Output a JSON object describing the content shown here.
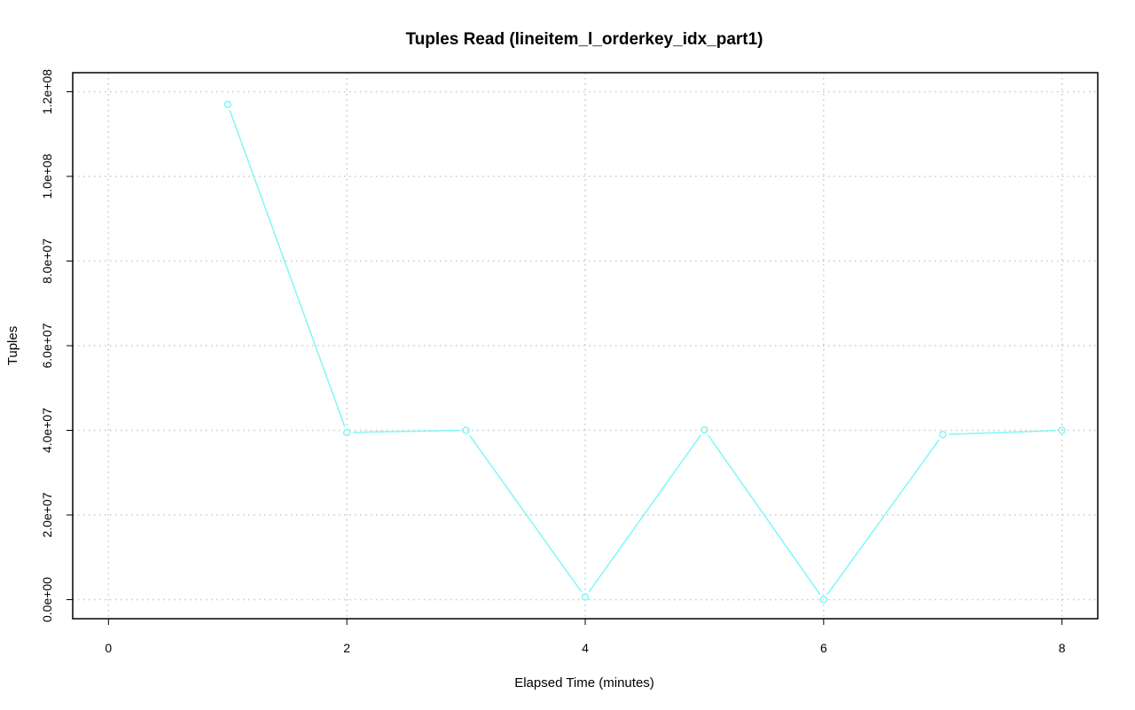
{
  "chart_data": {
    "type": "line",
    "title": "Tuples Read (lineitem_l_orderkey_idx_part1)",
    "xlabel": "Elapsed Time (minutes)",
    "ylabel": "Tuples",
    "xlim": [
      -0.3,
      8.3
    ],
    "ylim": [
      -4500000,
      124500000
    ],
    "x_ticks": [
      0,
      2,
      4,
      6,
      8
    ],
    "x_tick_labels": [
      "0",
      "2",
      "4",
      "6",
      "8"
    ],
    "y_ticks": [
      0,
      20000000,
      40000000,
      60000000,
      80000000,
      100000000,
      120000000
    ],
    "y_tick_labels": [
      "0.0e+00",
      "2.0e+07",
      "4.0e+07",
      "6.0e+07",
      "8.0e+07",
      "1.0e+08",
      "1.2e+08"
    ],
    "grid": true,
    "series": [
      {
        "color": "#7ff7f7",
        "x": [
          1,
          2,
          3,
          4,
          5,
          6,
          7,
          8
        ],
        "y": [
          117000000,
          39500000,
          40000000,
          600000,
          40100000,
          0,
          39000000,
          40000000
        ]
      }
    ]
  }
}
